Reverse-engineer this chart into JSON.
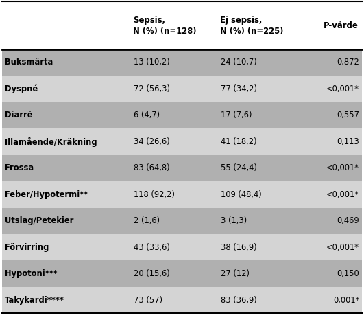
{
  "col_headers": [
    "",
    "Sepsis,\nN (%) (n=128)",
    "Ej sepsis,\nN (%) (n=225)",
    "P-värde"
  ],
  "rows": [
    {
      "label": "Buksmärta",
      "sepsis": "13 (10,2)",
      "ej_sepsis": "24 (10,7)",
      "p": "0,872",
      "shaded": true
    },
    {
      "label": "Dyspné",
      "sepsis": "72 (56,3)",
      "ej_sepsis": "77 (34,2)",
      "p": "<0,001*",
      "shaded": false
    },
    {
      "label": "Diarré",
      "sepsis": "6 (4,7)",
      "ej_sepsis": "17 (7,6)",
      "p": "0,557",
      "shaded": true
    },
    {
      "label": "Illamående/Kräkning",
      "sepsis": "34 (26,6)",
      "ej_sepsis": "41 (18,2)",
      "p": "0,113",
      "shaded": false
    },
    {
      "label": "Frossa",
      "sepsis": "83 (64,8)",
      "ej_sepsis": "55 (24,4)",
      "p": "<0,001*",
      "shaded": true
    },
    {
      "label": "Feber/Hypotermi**",
      "sepsis": "118 (92,2)",
      "ej_sepsis": "109 (48,4)",
      "p": "<0,001*",
      "shaded": false
    },
    {
      "label": "Utslag/Petekier",
      "sepsis": "2 (1,6)",
      "ej_sepsis": "3 (1,3)",
      "p": "0,469",
      "shaded": true
    },
    {
      "label": "Förvirring",
      "sepsis": "43 (33,6)",
      "ej_sepsis": "38 (16,9)",
      "p": "<0,001*",
      "shaded": false
    },
    {
      "label": "Hypotoni***",
      "sepsis": "20 (15,6)",
      "ej_sepsis": "27 (12)",
      "p": "0,150",
      "shaded": true
    },
    {
      "label": "Takykardi****",
      "sepsis": "73 (57)",
      "ej_sepsis": "83 (36,9)",
      "p": "0,001*",
      "shaded": false
    }
  ],
  "dark_row_color": "#b0b0b0",
  "light_row_color": "#d4d4d4",
  "header_bg_color": "#ffffff",
  "line_color": "#000000",
  "text_color": "#000000",
  "bg_color": "#ffffff",
  "fig_width": 5.31,
  "fig_height": 4.69,
  "dpi": 100
}
